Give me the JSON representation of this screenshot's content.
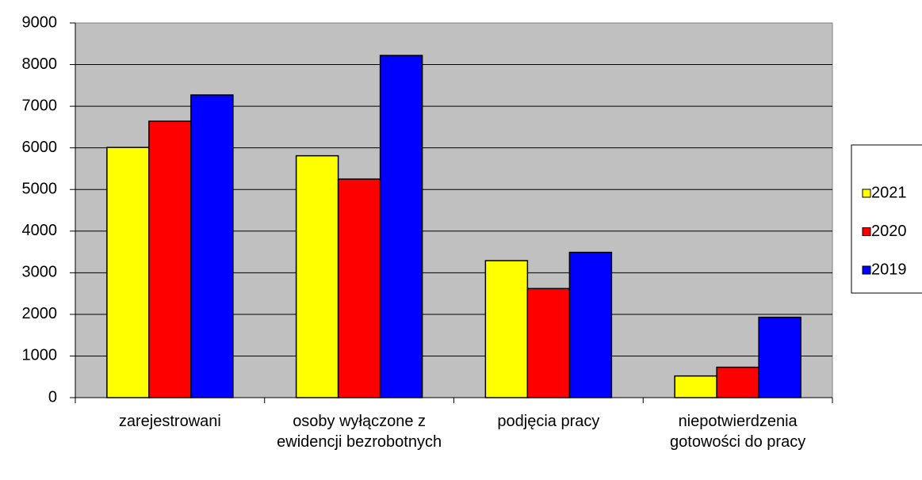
{
  "chart_data": {
    "type": "bar",
    "categories": [
      "zarejestrowani",
      "osoby wyłączone z ewidencji bezrobotnych",
      "podjęcia pracy",
      "niepotwierdzenia gotowości do pracy"
    ],
    "series": [
      {
        "name": "2021",
        "color": "#ffff00",
        "values": [
          6010,
          5810,
          3290,
          520
        ]
      },
      {
        "name": "2020",
        "color": "#ff0000",
        "values": [
          6640,
          5250,
          2620,
          730
        ]
      },
      {
        "name": "2019",
        "color": "#0000ff",
        "values": [
          7270,
          8220,
          3490,
          1930
        ]
      }
    ],
    "ylim": [
      0,
      9000
    ],
    "yticks": [
      0,
      1000,
      2000,
      3000,
      4000,
      5000,
      6000,
      7000,
      8000,
      9000
    ],
    "grid": true,
    "legend": "right"
  }
}
